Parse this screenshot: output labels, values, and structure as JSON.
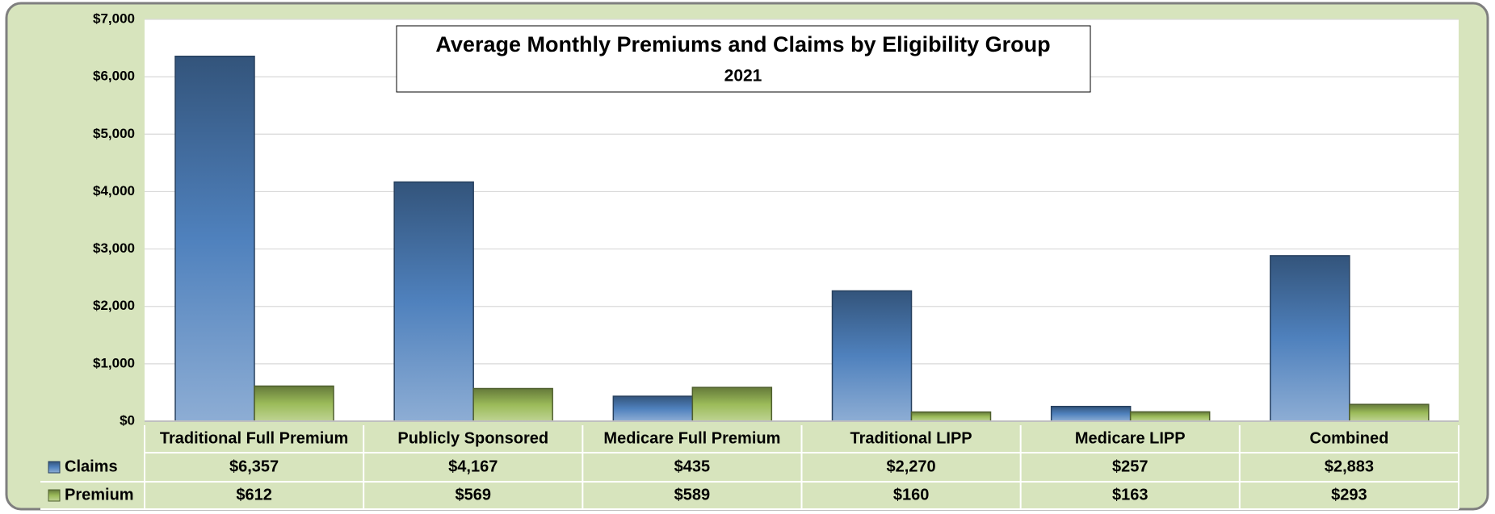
{
  "chart_data": {
    "type": "bar",
    "title": "Average Monthly Premiums and Claims by Eligibility Group",
    "subtitle": "2021",
    "categories": [
      "Traditional Full Premium",
      "Publicly Sponsored",
      "Medicare Full Premium",
      "Traditional LIPP",
      "Medicare LIPP",
      "Combined"
    ],
    "series": [
      {
        "name": "Claims",
        "color": "#4f81bd",
        "values": [
          6357,
          4167,
          435,
          2270,
          257,
          2883
        ],
        "value_labels": [
          "$6,357",
          "$4,167",
          "$435",
          "$2,270",
          "$257",
          "$2,883"
        ]
      },
      {
        "name": "Premium",
        "color": "#9bbb59",
        "values": [
          612,
          569,
          589,
          160,
          163,
          293
        ],
        "value_labels": [
          "$612",
          "$569",
          "$589",
          "$160",
          "$163",
          "$293"
        ]
      }
    ],
    "ylim": [
      0,
      7000
    ],
    "yticks": [
      {
        "value": 0,
        "label": "$0"
      },
      {
        "value": 1000,
        "label": "$1,000"
      },
      {
        "value": 2000,
        "label": "$2,000"
      },
      {
        "value": 3000,
        "label": "$3,000"
      },
      {
        "value": 4000,
        "label": "$4,000"
      },
      {
        "value": 5000,
        "label": "$5,000"
      },
      {
        "value": 6000,
        "label": "$6,000"
      },
      {
        "value": 7000,
        "label": "$7,000"
      }
    ],
    "grid": true
  }
}
